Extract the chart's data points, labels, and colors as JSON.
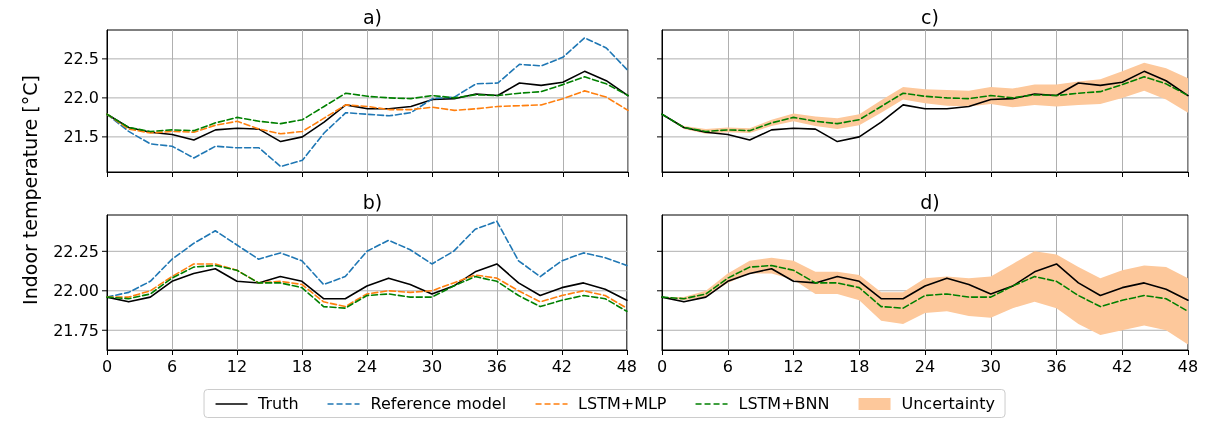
{
  "chart_data": [
    {
      "type": "line",
      "title": "a)",
      "ylabel": "Indoor temperature [°C]",
      "x": [
        0,
        2,
        4,
        6,
        8,
        10,
        12,
        14,
        16,
        18,
        20,
        22,
        24,
        26,
        28,
        30,
        32,
        34,
        36,
        38,
        40,
        42,
        44,
        46,
        48
      ],
      "xlim": [
        0,
        48
      ],
      "xticks": [
        0,
        6,
        12,
        18,
        24,
        30,
        36,
        42,
        48
      ],
      "ylim": [
        21.05,
        22.87
      ],
      "yticks": [
        21.5,
        {
          "value": 22,
          "label": "22.0"
        },
        22.5
      ],
      "grid": true,
      "tick_labels": "y",
      "legend": "bottom",
      "series": [
        {
          "name": "Truth",
          "color": "#000000",
          "line_style": "solid",
          "values": [
            21.79,
            21.62,
            21.56,
            21.53,
            21.46,
            21.59,
            21.61,
            21.6,
            21.44,
            21.5,
            21.69,
            21.91,
            21.86,
            21.86,
            21.89,
            21.98,
            21.99,
            22.05,
            22.03,
            22.19,
            22.16,
            22.2,
            22.34,
            22.22,
            22.03
          ]
        },
        {
          "name": "Reference model",
          "color": "#1f77b4",
          "line_style": "dashed",
          "values": [
            21.79,
            21.57,
            21.41,
            21.38,
            21.23,
            21.38,
            21.36,
            21.36,
            21.12,
            21.2,
            21.55,
            21.81,
            21.79,
            21.77,
            21.81,
            21.99,
            22.01,
            22.18,
            22.19,
            22.43,
            22.41,
            22.52,
            22.77,
            22.64,
            22.35
          ]
        },
        {
          "name": "LSTM+MLP",
          "color": "#ff7f0e",
          "line_style": "dashed",
          "values": [
            21.79,
            21.6,
            21.55,
            21.57,
            21.56,
            21.65,
            21.7,
            21.6,
            21.54,
            21.57,
            21.74,
            21.91,
            21.89,
            21.85,
            21.85,
            21.88,
            21.84,
            21.86,
            21.89,
            21.9,
            21.91,
            21.99,
            22.09,
            22.01,
            21.84
          ]
        },
        {
          "name": "LSTM+BNN",
          "color": "#008000",
          "line_style": "dashed",
          "values": [
            21.79,
            21.62,
            21.57,
            21.59,
            21.58,
            21.68,
            21.75,
            21.7,
            21.67,
            21.72,
            21.89,
            22.06,
            22.02,
            22.0,
            21.99,
            22.03,
            22.0,
            22.04,
            22.03,
            22.06,
            22.08,
            22.17,
            22.27,
            22.18,
            22.03
          ]
        }
      ]
    },
    {
      "type": "line",
      "title": "b)",
      "x": [
        0,
        2,
        4,
        6,
        8,
        10,
        12,
        14,
        16,
        18,
        20,
        22,
        24,
        26,
        28,
        30,
        32,
        34,
        36,
        38,
        40,
        42,
        44,
        46,
        48
      ],
      "xlim": [
        0,
        48
      ],
      "xticks": [
        0,
        6,
        12,
        18,
        24,
        30,
        36,
        42,
        48
      ],
      "ylim": [
        21.625,
        22.48
      ],
      "yticks": [
        21.75,
        {
          "value": 22,
          "label": "22.00"
        },
        22.25
      ],
      "grid": true,
      "legend": "bottom",
      "series": [
        {
          "name": "Truth",
          "color": "#000000",
          "line_style": "solid",
          "values": [
            21.96,
            21.93,
            21.96,
            22.06,
            22.11,
            22.14,
            22.06,
            22.05,
            22.09,
            22.06,
            21.95,
            21.95,
            22.03,
            22.08,
            22.04,
            21.98,
            22.03,
            22.12,
            22.17,
            22.05,
            21.97,
            22.02,
            22.05,
            22.01,
            21.94
          ]
        },
        {
          "name": "Reference model",
          "color": "#1f77b4",
          "line_style": "dashed",
          "values": [
            21.96,
            21.99,
            22.06,
            22.2,
            22.3,
            22.38,
            22.29,
            22.2,
            22.24,
            22.19,
            22.04,
            22.09,
            22.25,
            22.32,
            22.26,
            22.17,
            22.25,
            22.39,
            22.44,
            22.19,
            22.09,
            22.19,
            22.24,
            22.21,
            22.16
          ]
        },
        {
          "name": "LSTM+MLP",
          "color": "#ff7f0e",
          "line_style": "dashed",
          "values": [
            21.96,
            21.96,
            22.0,
            22.09,
            22.17,
            22.17,
            22.13,
            22.05,
            22.06,
            22.04,
            21.93,
            21.9,
            21.98,
            22.0,
            21.99,
            22.0,
            22.05,
            22.1,
            22.08,
            22.0,
            21.93,
            21.97,
            22.0,
            21.97,
            21.89
          ]
        },
        {
          "name": "LSTM+BNN",
          "color": "#008000",
          "line_style": "dashed",
          "values": [
            21.96,
            21.95,
            21.98,
            22.08,
            22.15,
            22.16,
            22.13,
            22.05,
            22.05,
            22.02,
            21.9,
            21.89,
            21.97,
            21.98,
            21.96,
            21.96,
            22.03,
            22.09,
            22.06,
            21.97,
            21.9,
            21.94,
            21.97,
            21.95,
            21.87
          ]
        }
      ]
    },
    {
      "type": "line",
      "title": "c)",
      "x": [
        0,
        2,
        4,
        6,
        8,
        10,
        12,
        14,
        16,
        18,
        20,
        22,
        24,
        26,
        28,
        30,
        32,
        34,
        36,
        38,
        40,
        42,
        44,
        46,
        48
      ],
      "xlim": [
        0,
        48
      ],
      "xticks": [
        0,
        6,
        12,
        18,
        24,
        30,
        36,
        42,
        48
      ],
      "ylim": [
        21.05,
        22.87
      ],
      "yticks": [
        {
          "value": 21.5,
          "label": null
        },
        {
          "value": 22,
          "label": null
        },
        {
          "value": 22.5,
          "label": null
        }
      ],
      "grid": true,
      "tick_labels": false,
      "legend": "bottom",
      "series": [
        {
          "name": "Truth",
          "color": "#000000",
          "line_style": "solid",
          "values": [
            21.79,
            21.62,
            21.56,
            21.53,
            21.46,
            21.59,
            21.61,
            21.6,
            21.44,
            21.5,
            21.69,
            21.91,
            21.86,
            21.86,
            21.89,
            21.98,
            21.99,
            22.05,
            22.03,
            22.19,
            22.16,
            22.2,
            22.34,
            22.22,
            22.03
          ]
        },
        {
          "name": "LSTM+BNN",
          "color": "#008000",
          "line_style": "dashed",
          "values": [
            21.79,
            21.62,
            21.57,
            21.59,
            21.58,
            21.68,
            21.75,
            21.7,
            21.67,
            21.72,
            21.89,
            22.06,
            22.02,
            22.0,
            21.99,
            22.03,
            22.0,
            22.04,
            22.03,
            22.06,
            22.08,
            22.17,
            22.27,
            22.18,
            22.03
          ],
          "lower": [
            21.79,
            21.6,
            21.54,
            21.56,
            21.55,
            21.64,
            21.7,
            21.64,
            21.6,
            21.65,
            21.81,
            21.98,
            21.93,
            21.9,
            21.89,
            21.92,
            21.88,
            21.91,
            21.89,
            21.91,
            21.92,
            22.0,
            22.09,
            21.98,
            21.81
          ],
          "upper": [
            21.79,
            21.64,
            21.6,
            21.62,
            21.61,
            21.72,
            21.8,
            21.76,
            21.74,
            21.79,
            21.97,
            22.14,
            22.11,
            22.1,
            22.09,
            22.14,
            22.12,
            22.17,
            22.17,
            22.21,
            22.24,
            22.34,
            22.45,
            22.38,
            22.25
          ]
        },
        {
          "name": "Uncertainty",
          "type": "area",
          "color": "#fdc89b",
          "values": [
            null,
            null,
            null,
            null,
            null,
            null,
            null,
            null,
            null,
            null,
            null,
            null,
            null,
            null,
            null,
            null,
            null,
            null,
            null,
            null,
            null,
            null,
            null,
            null,
            null
          ]
        }
      ]
    },
    {
      "type": "line",
      "title": "d)",
      "x": [
        0,
        2,
        4,
        6,
        8,
        10,
        12,
        14,
        16,
        18,
        20,
        22,
        24,
        26,
        28,
        30,
        32,
        34,
        36,
        38,
        40,
        42,
        44,
        46,
        48
      ],
      "xlim": [
        0,
        48
      ],
      "xticks": [
        0,
        6,
        12,
        18,
        24,
        30,
        36,
        42,
        48
      ],
      "ylim": [
        21.625,
        22.48
      ],
      "yticks": [
        {
          "value": 21.75,
          "label": null
        },
        {
          "value": 22,
          "label": null
        },
        {
          "value": 22.25,
          "label": null
        }
      ],
      "grid": true,
      "tick_labels": "x",
      "legend": "bottom",
      "series": [
        {
          "name": "Truth",
          "color": "#000000",
          "line_style": "solid",
          "values": [
            21.96,
            21.93,
            21.96,
            22.06,
            22.11,
            22.14,
            22.06,
            22.05,
            22.09,
            22.06,
            21.95,
            21.95,
            22.03,
            22.08,
            22.04,
            21.98,
            22.03,
            22.12,
            22.17,
            22.05,
            21.97,
            22.02,
            22.05,
            22.01,
            21.94
          ]
        },
        {
          "name": "LSTM+BNN",
          "color": "#008000",
          "line_style": "dashed",
          "values": [
            21.96,
            21.95,
            21.98,
            22.08,
            22.15,
            22.16,
            22.13,
            22.05,
            22.05,
            22.02,
            21.9,
            21.89,
            21.97,
            21.98,
            21.96,
            21.96,
            22.03,
            22.09,
            22.06,
            21.97,
            21.9,
            21.94,
            21.97,
            21.95,
            21.87
          ],
          "lower": [
            21.96,
            21.94,
            21.96,
            22.05,
            22.11,
            22.11,
            22.07,
            21.98,
            21.98,
            21.94,
            21.81,
            21.79,
            21.86,
            21.87,
            21.84,
            21.83,
            21.89,
            21.93,
            21.89,
            21.79,
            21.72,
            21.75,
            21.78,
            21.75,
            21.66
          ],
          "upper": [
            21.96,
            21.96,
            22.0,
            22.11,
            22.19,
            22.21,
            22.19,
            22.12,
            22.12,
            22.1,
            21.99,
            21.99,
            22.08,
            22.09,
            22.08,
            22.09,
            22.17,
            22.25,
            22.23,
            22.15,
            22.08,
            22.13,
            22.16,
            22.15,
            22.08
          ]
        }
      ]
    }
  ]
}
